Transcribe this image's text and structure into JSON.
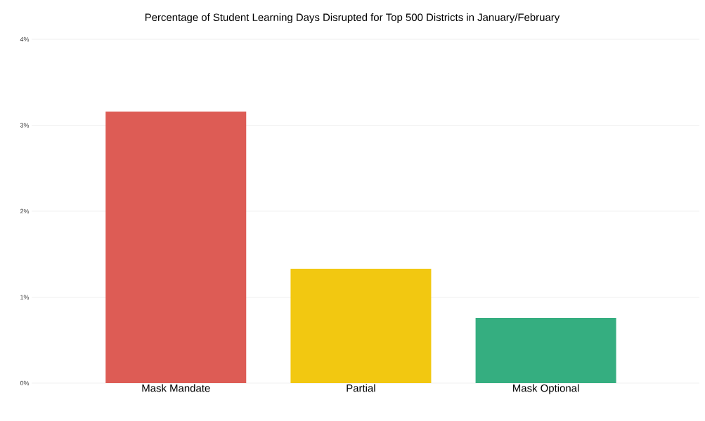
{
  "chart_data": {
    "type": "bar",
    "title": "Percentage of Student Learning Days Disrupted for Top 500 Districts in January/February",
    "categories": [
      "Mask Mandate",
      "Partial",
      "Mask Optional"
    ],
    "values": [
      3.16,
      1.33,
      0.76
    ],
    "colors": [
      "#dd5c55",
      "#f2c811",
      "#35ae80"
    ],
    "ylim": [
      0,
      4
    ],
    "yticks": [
      {
        "value": 0,
        "label": "0%"
      },
      {
        "value": 1,
        "label": "1%"
      },
      {
        "value": 2,
        "label": "2%"
      },
      {
        "value": 3,
        "label": "3%"
      },
      {
        "value": 4,
        "label": "4%"
      }
    ],
    "grid": "y"
  }
}
